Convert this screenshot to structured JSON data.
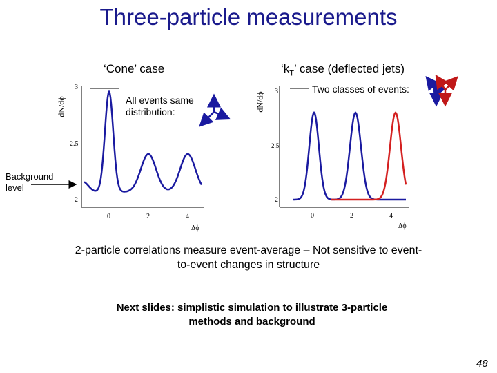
{
  "title": "Three-particle measurements",
  "left_panel": {
    "heading": "‘Cone’ case",
    "note": "All events same distribution:",
    "y_label": "dN/dϕ",
    "x_label": "Δϕ",
    "yticks": [
      "3",
      "2.5",
      "2"
    ],
    "xticks": [
      "0",
      "2",
      "4"
    ]
  },
  "right_panel": {
    "heading_parts": [
      "‘k",
      "T",
      "’ case (deflected jets)"
    ],
    "note": "Two classes of events:",
    "y_label": "dN/dϕ",
    "x_label": "Δϕ",
    "yticks": [
      "3",
      "2.5",
      "2"
    ],
    "xticks": [
      "0",
      "2",
      "4"
    ]
  },
  "background_label": "Background level",
  "body_text": "2-particle correlations measure event-average – Not sensitive to event-to-event changes in structure",
  "next_text": "Next slides: simplistic simulation to illustrate 3-particle methods and background",
  "page_number": "48"
}
